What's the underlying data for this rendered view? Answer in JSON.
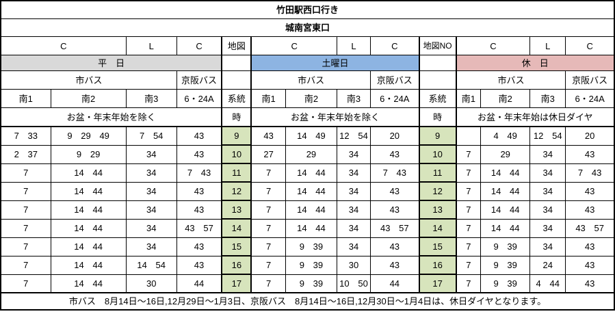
{
  "page": {
    "title": "竹田駅西口行き",
    "subtitle": "城南宮東口",
    "footer_note": "市バス　8月14日～16日,12月29日～1月3日、京阪バス　8月14日～16日,12月30日～1月4日は、休日ダイヤとなります。"
  },
  "colors": {
    "weekday_header": "#d9d9d9",
    "saturday_header": "#8db4e2",
    "holiday_header": "#e6b9b8",
    "hour_cell": "#d7e4bc",
    "border": "#000000"
  },
  "map_columns": {
    "left_header": "地図",
    "right_header": "地図NO",
    "route_label": "系統",
    "hour_label": "時"
  },
  "sections": [
    {
      "id": "weekday",
      "day_label": "平　日",
      "col_headers": [
        "C",
        "L",
        "C"
      ],
      "operators": [
        "市バス",
        "京阪バス"
      ],
      "routes": [
        "南1",
        "南2",
        "南3",
        "6・24A"
      ],
      "service_note": "お盆・年末年始を除く"
    },
    {
      "id": "saturday",
      "day_label": "土曜日",
      "col_headers": [
        "C",
        "L",
        "C"
      ],
      "operators": [
        "市バス",
        "京阪バス"
      ],
      "routes": [
        "南1",
        "南2",
        "南3",
        "6・24A"
      ],
      "service_note": "お盆・年末年始を除く"
    },
    {
      "id": "holiday",
      "day_label": "休　日",
      "col_headers": [
        "C",
        "L",
        "C"
      ],
      "operators": [
        "市バス",
        "京阪バス"
      ],
      "routes": [
        "南1",
        "南2",
        "南3",
        "6・24A"
      ],
      "service_note": "お盆・年末年始は休日ダイヤ"
    }
  ],
  "timetable": {
    "hours": [
      "9",
      "10",
      "11",
      "12",
      "13",
      "14",
      "15",
      "16",
      "17"
    ],
    "weekday": [
      [
        "7 33",
        "9 29 49",
        "7 54",
        "43"
      ],
      [
        "2 37",
        "9 29",
        "34",
        "43"
      ],
      [
        "7",
        "14 44",
        "34",
        "7 43"
      ],
      [
        "7",
        "14 44",
        "34",
        "43"
      ],
      [
        "7",
        "14 44",
        "34",
        "43"
      ],
      [
        "7",
        "14 44",
        "34",
        "43 57"
      ],
      [
        "7",
        "14 44",
        "34",
        "43"
      ],
      [
        "7",
        "14 44",
        "14 54",
        "43"
      ],
      [
        "7",
        "14 44",
        "30",
        "44"
      ]
    ],
    "saturday": [
      [
        "43",
        "14 49",
        "12 54",
        "20"
      ],
      [
        "27",
        "29",
        "34",
        "43"
      ],
      [
        "7",
        "14 44",
        "34",
        "7 43"
      ],
      [
        "7",
        "14 44",
        "34",
        "43"
      ],
      [
        "7",
        "14 44",
        "34",
        "43"
      ],
      [
        "7",
        "14 44",
        "34",
        "43 57"
      ],
      [
        "7",
        "9 39",
        "34",
        "43"
      ],
      [
        "7",
        "9 39",
        "30",
        "43"
      ],
      [
        "7",
        "9 39",
        "10 50",
        "44"
      ]
    ],
    "holiday": [
      [
        "",
        "4 49",
        "12 54",
        "20"
      ],
      [
        "7",
        "29",
        "34",
        "43"
      ],
      [
        "7",
        "14 44",
        "34",
        "7 43"
      ],
      [
        "7",
        "14 44",
        "34",
        "43"
      ],
      [
        "7",
        "14 44",
        "34",
        "43"
      ],
      [
        "7",
        "14 44",
        "34",
        "43 57"
      ],
      [
        "7",
        "9 39",
        "34",
        "43"
      ],
      [
        "7",
        "9 39",
        "24",
        "43"
      ],
      [
        "7",
        "9 39",
        "4 44",
        "43"
      ]
    ]
  }
}
